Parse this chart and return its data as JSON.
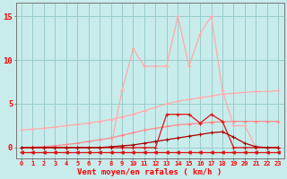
{
  "x": [
    0,
    1,
    2,
    3,
    4,
    5,
    6,
    7,
    8,
    9,
    10,
    11,
    12,
    13,
    14,
    15,
    16,
    17,
    18,
    19,
    20,
    21,
    22,
    23
  ],
  "line_rafales_top": [
    2.0,
    2.1,
    2.2,
    2.35,
    2.5,
    2.65,
    2.8,
    3.0,
    3.2,
    3.5,
    3.8,
    4.2,
    4.6,
    5.0,
    5.3,
    5.5,
    5.7,
    5.9,
    6.1,
    6.2,
    6.3,
    6.4,
    6.4,
    6.5
  ],
  "line_moyen_top": [
    0.0,
    0.05,
    0.1,
    0.2,
    0.35,
    0.5,
    0.7,
    0.9,
    1.1,
    1.4,
    1.7,
    2.0,
    2.2,
    2.4,
    2.6,
    2.7,
    2.8,
    2.9,
    2.95,
    3.0,
    3.0,
    3.0,
    3.0,
    3.0
  ],
  "line_spiky_pink": [
    0.0,
    0.0,
    0.0,
    0.0,
    0.0,
    0.0,
    0.0,
    0.0,
    0.0,
    6.5,
    11.3,
    9.3,
    9.3,
    9.3,
    15.0,
    9.3,
    13.0,
    15.0,
    6.5,
    2.5,
    2.5,
    0.0,
    0.0,
    0.0
  ],
  "line_red_hump": [
    0.0,
    0.0,
    0.0,
    0.0,
    0.0,
    0.0,
    0.0,
    0.0,
    0.0,
    0.0,
    0.0,
    0.0,
    0.0,
    3.8,
    3.8,
    3.8,
    2.8,
    3.8,
    3.0,
    0.0,
    0.0,
    0.0,
    0.0,
    0.0
  ],
  "line_dark_rise": [
    0.0,
    0.0,
    0.0,
    0.0,
    0.0,
    0.0,
    0.0,
    0.0,
    0.1,
    0.2,
    0.3,
    0.5,
    0.7,
    0.9,
    1.1,
    1.3,
    1.5,
    1.7,
    1.8,
    1.2,
    0.5,
    0.1,
    0.0,
    0.0
  ],
  "line_bottom_flat": [
    -0.5,
    -0.5,
    -0.5,
    -0.5,
    -0.5,
    -0.5,
    -0.5,
    -0.5,
    -0.5,
    -0.5,
    -0.5,
    -0.5,
    -0.5,
    -0.5,
    -0.5,
    -0.5,
    -0.5,
    -0.5,
    -0.5,
    -0.5,
    -0.5,
    -0.5,
    -0.5,
    -0.5
  ],
  "bg_color": "#c8ecec",
  "grid_color": "#99cccc",
  "color_light_pink": "#ffaaaa",
  "color_med_pink": "#ff8888",
  "color_red": "#dd1111",
  "color_dark_red": "#aa0000",
  "xlabel": "Vent moyen/en rafales ( km/h )",
  "yticks": [
    0,
    5,
    10,
    15
  ],
  "xticks": [
    0,
    1,
    2,
    3,
    4,
    5,
    6,
    7,
    8,
    9,
    10,
    11,
    12,
    13,
    14,
    15,
    16,
    17,
    18,
    19,
    20,
    21,
    22,
    23
  ],
  "ylim": [
    -1.2,
    16.5
  ],
  "xlim": [
    -0.5,
    23.5
  ]
}
